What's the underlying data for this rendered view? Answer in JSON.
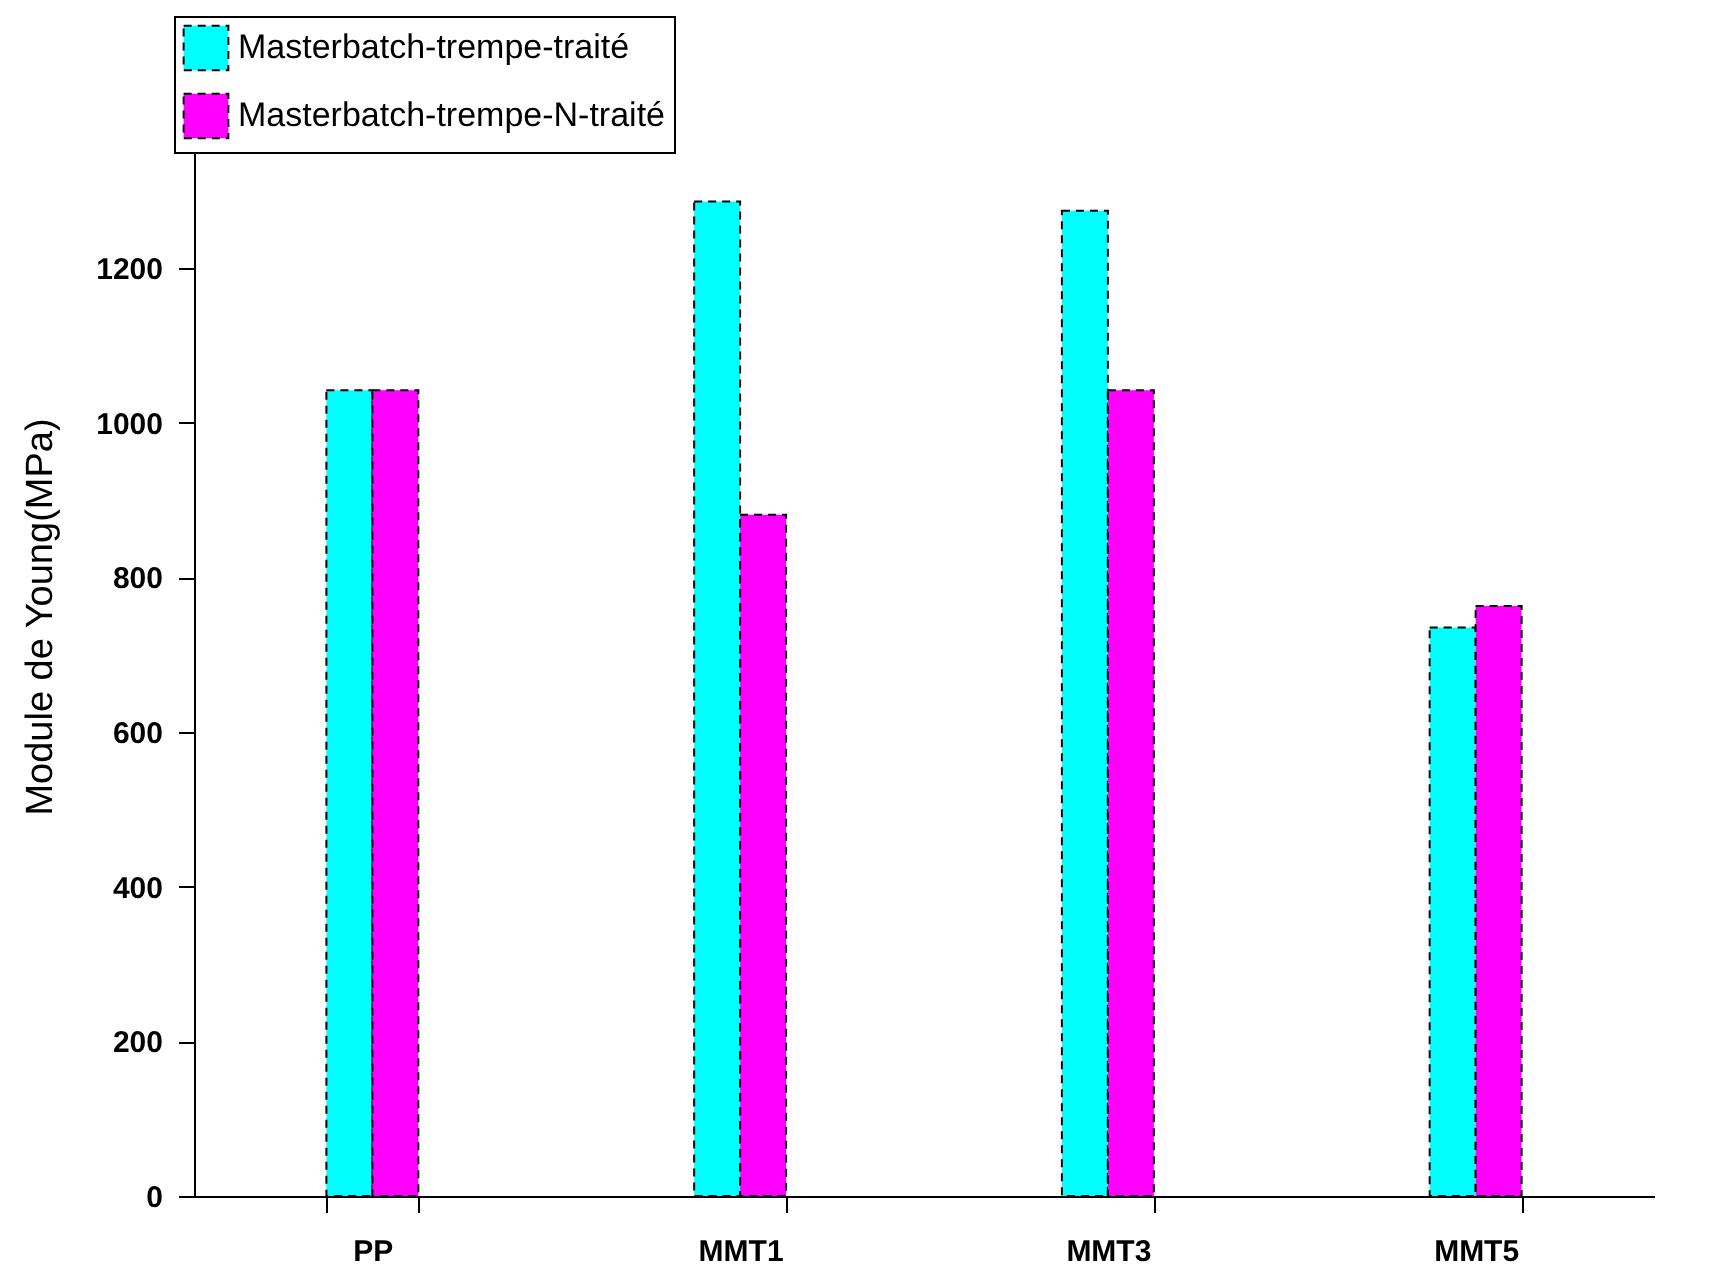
{
  "chart_data": {
    "type": "bar",
    "ylabel": "Module de Young(MPa)",
    "categories": [
      "PP",
      "MMT1",
      "MMT3",
      "MMT5"
    ],
    "series": [
      {
        "name": "Masterbatch-trempe-traité",
        "color": "#00ffff",
        "values": [
          1042,
          1286,
          1274,
          735
        ]
      },
      {
        "name": "Masterbatch-trempe-N-traité",
        "color": "#ff00ff",
        "values": [
          1042,
          881,
          1042,
          763
        ]
      }
    ],
    "ylim": [
      0,
      1500
    ],
    "yticks": [
      0,
      200,
      400,
      600,
      800,
      1000,
      1200
    ],
    "grid": false,
    "legend": "top left",
    "line_style": "dashed"
  }
}
